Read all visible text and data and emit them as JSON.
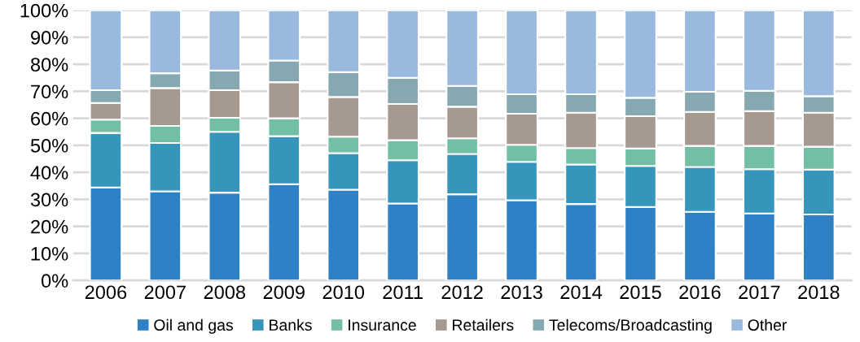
{
  "chart_data": {
    "type": "bar",
    "stacked": true,
    "categories": [
      "2006",
      "2007",
      "2008",
      "2009",
      "2010",
      "2011",
      "2012",
      "2013",
      "2014",
      "2015",
      "2016",
      "2017",
      "2018"
    ],
    "series": [
      {
        "name": "Oil and gas",
        "color": "#2e81c4",
        "values": [
          34.4,
          33.0,
          32.5,
          35.6,
          33.6,
          28.5,
          31.9,
          29.7,
          28.3,
          27.2,
          25.4,
          24.8,
          24.4
        ]
      },
      {
        "name": "Banks",
        "color": "#3595bb",
        "values": [
          20.2,
          17.9,
          22.5,
          17.8,
          13.5,
          16.0,
          14.9,
          14.2,
          14.6,
          15.2,
          16.6,
          16.4,
          16.6
        ]
      },
      {
        "name": "Insurance",
        "color": "#73bfa5",
        "values": [
          4.9,
          6.3,
          5.2,
          6.6,
          6.1,
          7.4,
          5.8,
          6.3,
          6.1,
          6.4,
          7.8,
          8.6,
          8.5
        ]
      },
      {
        "name": "Retailers",
        "color": "#a6998f",
        "values": [
          6.2,
          14.0,
          10.2,
          13.4,
          14.7,
          13.4,
          11.7,
          11.5,
          13.1,
          12.0,
          12.6,
          12.9,
          12.6
        ]
      },
      {
        "name": "Telecoms/Broadcasting",
        "color": "#86a9b1",
        "values": [
          4.7,
          5.5,
          7.3,
          8.0,
          9.2,
          9.7,
          7.7,
          7.2,
          6.8,
          6.8,
          7.4,
          7.5,
          6.1
        ]
      },
      {
        "name": "Other",
        "color": "#9ab9df",
        "values": [
          29.6,
          23.3,
          22.3,
          18.6,
          22.9,
          25.0,
          28.0,
          31.1,
          31.1,
          32.4,
          30.2,
          29.8,
          31.8
        ]
      }
    ],
    "ylim": [
      0,
      100
    ],
    "yticks": [
      {
        "value": 0,
        "label": "0%"
      },
      {
        "value": 10,
        "label": "10%"
      },
      {
        "value": 20,
        "label": "20%"
      },
      {
        "value": 30,
        "label": "30%"
      },
      {
        "value": 40,
        "label": "40%"
      },
      {
        "value": 50,
        "label": "50%"
      },
      {
        "value": 60,
        "label": "60%"
      },
      {
        "value": 70,
        "label": "70%"
      },
      {
        "value": 80,
        "label": "80%"
      },
      {
        "value": 90,
        "label": "90%"
      },
      {
        "value": 100,
        "label": "100%"
      }
    ],
    "grid": "y",
    "legend": "bottom"
  }
}
